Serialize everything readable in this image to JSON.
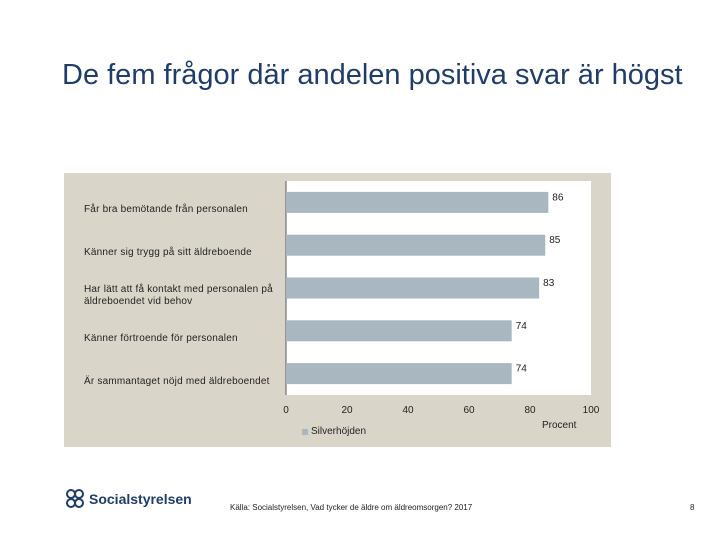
{
  "title": "De fem frågor där andelen positiva svar är högst",
  "chart_data": {
    "type": "bar",
    "orientation": "horizontal",
    "categories": [
      "Får bra bemötande från personalen",
      "Känner sig trygg på sitt äldreboende",
      "Har lätt att få kontakt med personalen på äldreboendet vid behov",
      "Känner förtroende för personalen",
      "Är sammantaget nöjd med äldreboendet"
    ],
    "series": [
      {
        "name": "Silverhöjden",
        "values": [
          86,
          85,
          83,
          74,
          74
        ]
      }
    ],
    "xlim": [
      0,
      100
    ],
    "xticks": [
      "0",
      "20",
      "40",
      "60",
      "80",
      "100"
    ],
    "xlabel": "Procent",
    "legend_position": "bottom-left",
    "bar_color": "#a9b7c1",
    "background_color": "#d9d6c9"
  },
  "footer": {
    "source": "Källa: Socialstyrelsen, Vad tycker de äldre om äldreomsorgen? 2017",
    "page_number": "8",
    "logo_text": "Socialstyrelsen"
  }
}
